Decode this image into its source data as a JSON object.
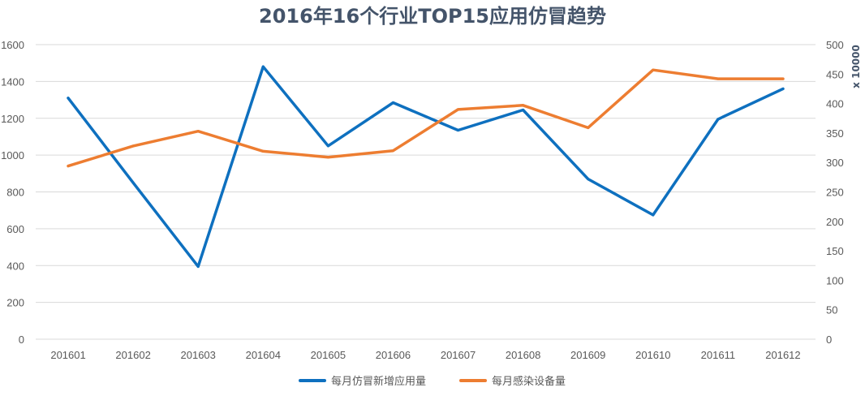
{
  "chart_data": {
    "type": "line",
    "title": "2016年16个行业TOP15应用仿冒趋势",
    "categories": [
      "201601",
      "201602",
      "201603",
      "201604",
      "201605",
      "201606",
      "201607",
      "201608",
      "201609",
      "201610",
      "201611",
      "201612"
    ],
    "y_left": {
      "range": [
        0,
        1600
      ],
      "ticks": [
        "0",
        "200",
        "400",
        "600",
        "800",
        "1000",
        "1200",
        "1400",
        "1600"
      ]
    },
    "y_right": {
      "range": [
        0,
        500
      ],
      "ticks": [
        "0",
        "50",
        "100",
        "150",
        "200",
        "250",
        "300",
        "350",
        "400",
        "450",
        "500"
      ],
      "unit": "x 10000"
    },
    "grid": true,
    "legend": "bottom",
    "series": [
      {
        "name": "每月仿冒新增应用量",
        "axis": "left",
        "color": "#0e70bf",
        "values": [
          1310,
          850,
          395,
          1480,
          1050,
          1285,
          1135,
          1245,
          870,
          675,
          1195,
          1360
        ]
      },
      {
        "name": "每月感染设备量",
        "axis": "right",
        "color": "#ed7d31",
        "values": [
          294,
          328,
          353,
          319,
          309,
          320,
          390,
          397,
          359,
          457,
          442,
          442
        ]
      }
    ]
  }
}
